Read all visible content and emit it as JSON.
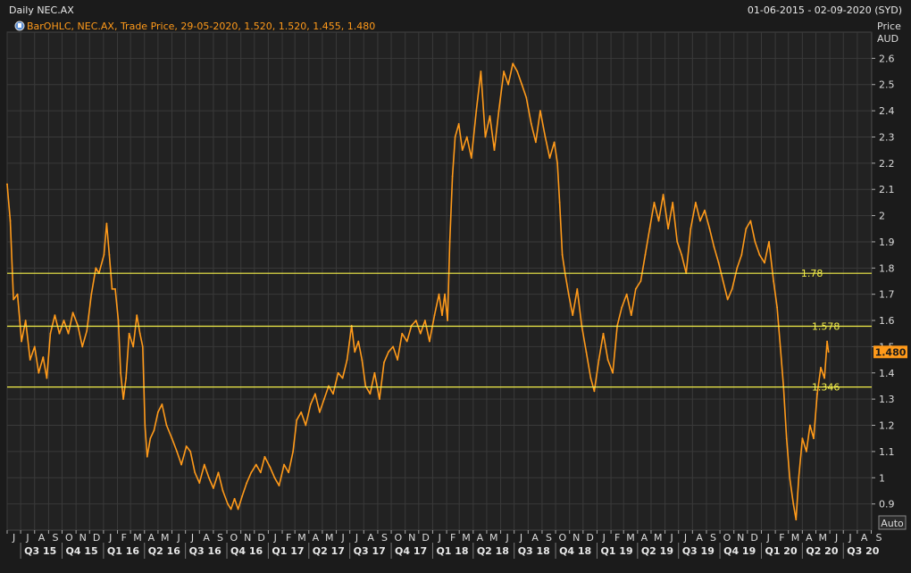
{
  "header": {
    "title": "Daily NEC.AX",
    "date_range": "01-06-2015 - 02-09-2020 (SYD)"
  },
  "legend": {
    "text": "BarOHLC, NEC.AX, Trade Price, 29-05-2020, 1.520, 1.520, 1.455, 1.480",
    "color": "#ff9a1a"
  },
  "axis": {
    "y_title_line1": "Price",
    "y_title_line2": "AUD",
    "auto_label": "Auto"
  },
  "colors": {
    "background": "#1b1b1b",
    "plot": "#222222",
    "grid": "#3a3a3a",
    "series": "#ff9a1a",
    "level_line": "#f5f04a",
    "last_price_bg": "#ff9a1a"
  },
  "chart_data": {
    "type": "line",
    "ylim": [
      0.8,
      2.7
    ],
    "xlim": [
      "2015-06-01",
      "2020-09-02"
    ],
    "y_ticks": [
      "0.9",
      "1",
      "1.1",
      "1.2",
      "1.3",
      "1.4",
      "1.5",
      "1.6",
      "1.7",
      "1.8",
      "1.9",
      "2",
      "2.1",
      "2.2",
      "2.3",
      "2.4",
      "2.5",
      "2.6"
    ],
    "y_tick_values": [
      0.9,
      1.0,
      1.1,
      1.2,
      1.3,
      1.4,
      1.5,
      1.6,
      1.7,
      1.8,
      1.9,
      2.0,
      2.1,
      2.2,
      2.3,
      2.4,
      2.5,
      2.6
    ],
    "month_labels": [
      "J",
      "J",
      "A",
      "S",
      "O",
      "N",
      "D",
      "J",
      "F",
      "M",
      "A",
      "M",
      "J",
      "J",
      "A",
      "S",
      "O",
      "N",
      "D",
      "J",
      "F",
      "M",
      "A",
      "M",
      "J",
      "J",
      "A",
      "S",
      "O",
      "N",
      "D",
      "J",
      "F",
      "M",
      "A",
      "M",
      "J",
      "J",
      "A",
      "S",
      "O",
      "N",
      "D",
      "J",
      "F",
      "M",
      "A",
      "M",
      "J",
      "J",
      "A",
      "S",
      "O",
      "N",
      "D",
      "J",
      "F",
      "M",
      "A",
      "M",
      "J",
      "J",
      "A",
      "S"
    ],
    "month_dates": [
      "2015-06-01",
      "2015-07-01",
      "2015-08-01",
      "2015-09-01",
      "2015-10-01",
      "2015-11-01",
      "2015-12-01",
      "2016-01-01",
      "2016-02-01",
      "2016-03-01",
      "2016-04-01",
      "2016-05-01",
      "2016-06-01",
      "2016-07-01",
      "2016-08-01",
      "2016-09-01",
      "2016-10-01",
      "2016-11-01",
      "2016-12-01",
      "2017-01-01",
      "2017-02-01",
      "2017-03-01",
      "2017-04-01",
      "2017-05-01",
      "2017-06-01",
      "2017-07-01",
      "2017-08-01",
      "2017-09-01",
      "2017-10-01",
      "2017-11-01",
      "2017-12-01",
      "2018-01-01",
      "2018-02-01",
      "2018-03-01",
      "2018-04-01",
      "2018-05-01",
      "2018-06-01",
      "2018-07-01",
      "2018-08-01",
      "2018-09-01",
      "2018-10-01",
      "2018-11-01",
      "2018-12-01",
      "2019-01-01",
      "2019-02-01",
      "2019-03-01",
      "2019-04-01",
      "2019-05-01",
      "2019-06-01",
      "2019-07-01",
      "2019-08-01",
      "2019-09-01",
      "2019-10-01",
      "2019-11-01",
      "2019-12-01",
      "2020-01-01",
      "2020-02-01",
      "2020-03-01",
      "2020-04-01",
      "2020-05-01",
      "2020-06-01",
      "2020-07-01",
      "2020-08-01",
      "2020-09-01"
    ],
    "quarter_labels": [
      "Q3 15",
      "Q4 15",
      "Q1 16",
      "Q2 16",
      "Q3 16",
      "Q4 16",
      "Q1 17",
      "Q2 17",
      "Q3 17",
      "Q4 17",
      "Q1 18",
      "Q2 18",
      "Q3 18",
      "Q4 18",
      "Q1 19",
      "Q2 19",
      "Q3 19",
      "Q4 19",
      "Q1 20",
      "Q2 20",
      "Q3 20"
    ],
    "quarter_dates": [
      "2015-07-01",
      "2015-10-01",
      "2016-01-01",
      "2016-04-01",
      "2016-07-01",
      "2016-10-01",
      "2017-01-01",
      "2017-04-01",
      "2017-07-01",
      "2017-10-01",
      "2018-01-01",
      "2018-04-01",
      "2018-07-01",
      "2018-10-01",
      "2019-01-01",
      "2019-04-01",
      "2019-07-01",
      "2019-10-01",
      "2020-01-01",
      "2020-04-01",
      "2020-07-01"
    ],
    "levels": [
      {
        "value": 1.78,
        "label": "1.78"
      },
      {
        "value": 1.578,
        "label": "1.578"
      },
      {
        "value": 1.346,
        "label": "1.346"
      }
    ],
    "last_price": {
      "value": 1.48,
      "label": "1.480"
    },
    "series": [
      {
        "points": [
          [
            "2015-06-01",
            2.12
          ],
          [
            "2015-06-08",
            1.98
          ],
          [
            "2015-06-15",
            1.68
          ],
          [
            "2015-06-24",
            1.7
          ],
          [
            "2015-07-03",
            1.52
          ],
          [
            "2015-07-12",
            1.6
          ],
          [
            "2015-07-22",
            1.45
          ],
          [
            "2015-08-01",
            1.5
          ],
          [
            "2015-08-10",
            1.4
          ],
          [
            "2015-08-20",
            1.46
          ],
          [
            "2015-08-28",
            1.38
          ],
          [
            "2015-09-05",
            1.55
          ],
          [
            "2015-09-15",
            1.62
          ],
          [
            "2015-09-25",
            1.55
          ],
          [
            "2015-10-05",
            1.6
          ],
          [
            "2015-10-15",
            1.55
          ],
          [
            "2015-10-25",
            1.63
          ],
          [
            "2015-11-05",
            1.58
          ],
          [
            "2015-11-15",
            1.5
          ],
          [
            "2015-11-25",
            1.56
          ],
          [
            "2015-12-05",
            1.7
          ],
          [
            "2015-12-15",
            1.8
          ],
          [
            "2015-12-22",
            1.78
          ],
          [
            "2016-01-02",
            1.85
          ],
          [
            "2016-01-08",
            1.97
          ],
          [
            "2016-01-14",
            1.85
          ],
          [
            "2016-01-20",
            1.72
          ],
          [
            "2016-01-27",
            1.72
          ],
          [
            "2016-02-03",
            1.6
          ],
          [
            "2016-02-08",
            1.4
          ],
          [
            "2016-02-14",
            1.3
          ],
          [
            "2016-02-20",
            1.38
          ],
          [
            "2016-02-27",
            1.55
          ],
          [
            "2016-03-07",
            1.5
          ],
          [
            "2016-03-15",
            1.62
          ],
          [
            "2016-03-22",
            1.55
          ],
          [
            "2016-03-28",
            1.5
          ],
          [
            "2016-04-02",
            1.2
          ],
          [
            "2016-04-07",
            1.08
          ],
          [
            "2016-04-14",
            1.15
          ],
          [
            "2016-04-22",
            1.18
          ],
          [
            "2016-05-01",
            1.25
          ],
          [
            "2016-05-10",
            1.28
          ],
          [
            "2016-05-20",
            1.2
          ],
          [
            "2016-06-01",
            1.15
          ],
          [
            "2016-06-12",
            1.1
          ],
          [
            "2016-06-22",
            1.05
          ],
          [
            "2016-07-03",
            1.12
          ],
          [
            "2016-07-12",
            1.1
          ],
          [
            "2016-07-22",
            1.02
          ],
          [
            "2016-08-01",
            0.98
          ],
          [
            "2016-08-12",
            1.05
          ],
          [
            "2016-08-22",
            1.0
          ],
          [
            "2016-09-01",
            0.96
          ],
          [
            "2016-09-12",
            1.02
          ],
          [
            "2016-09-22",
            0.95
          ],
          [
            "2016-10-03",
            0.9
          ],
          [
            "2016-10-10",
            0.88
          ],
          [
            "2016-10-18",
            0.92
          ],
          [
            "2016-10-26",
            0.88
          ],
          [
            "2016-11-04",
            0.93
          ],
          [
            "2016-11-14",
            0.98
          ],
          [
            "2016-11-24",
            1.02
          ],
          [
            "2016-12-05",
            1.05
          ],
          [
            "2016-12-15",
            1.02
          ],
          [
            "2016-12-24",
            1.08
          ],
          [
            "2017-01-05",
            1.04
          ],
          [
            "2017-01-15",
            1.0
          ],
          [
            "2017-01-25",
            0.97
          ],
          [
            "2017-02-05",
            1.05
          ],
          [
            "2017-02-15",
            1.02
          ],
          [
            "2017-02-25",
            1.1
          ],
          [
            "2017-03-05",
            1.22
          ],
          [
            "2017-03-15",
            1.25
          ],
          [
            "2017-03-25",
            1.2
          ],
          [
            "2017-04-05",
            1.28
          ],
          [
            "2017-04-15",
            1.32
          ],
          [
            "2017-04-25",
            1.25
          ],
          [
            "2017-05-05",
            1.3
          ],
          [
            "2017-05-15",
            1.35
          ],
          [
            "2017-05-25",
            1.32
          ],
          [
            "2017-06-05",
            1.4
          ],
          [
            "2017-06-15",
            1.38
          ],
          [
            "2017-06-25",
            1.45
          ],
          [
            "2017-07-05",
            1.58
          ],
          [
            "2017-07-12",
            1.48
          ],
          [
            "2017-07-20",
            1.52
          ],
          [
            "2017-07-28",
            1.45
          ],
          [
            "2017-08-05",
            1.35
          ],
          [
            "2017-08-15",
            1.32
          ],
          [
            "2017-08-25",
            1.4
          ],
          [
            "2017-09-05",
            1.3
          ],
          [
            "2017-09-15",
            1.44
          ],
          [
            "2017-09-25",
            1.48
          ],
          [
            "2017-10-05",
            1.5
          ],
          [
            "2017-10-15",
            1.45
          ],
          [
            "2017-10-25",
            1.55
          ],
          [
            "2017-11-05",
            1.52
          ],
          [
            "2017-11-15",
            1.58
          ],
          [
            "2017-11-25",
            1.6
          ],
          [
            "2017-12-05",
            1.55
          ],
          [
            "2017-12-15",
            1.6
          ],
          [
            "2017-12-25",
            1.52
          ],
          [
            "2018-01-05",
            1.62
          ],
          [
            "2018-01-15",
            1.7
          ],
          [
            "2018-01-22",
            1.62
          ],
          [
            "2018-01-28",
            1.7
          ],
          [
            "2018-02-03",
            1.6
          ],
          [
            "2018-02-08",
            1.9
          ],
          [
            "2018-02-14",
            2.15
          ],
          [
            "2018-02-20",
            2.3
          ],
          [
            "2018-02-28",
            2.35
          ],
          [
            "2018-03-08",
            2.25
          ],
          [
            "2018-03-18",
            2.3
          ],
          [
            "2018-03-28",
            2.22
          ],
          [
            "2018-04-08",
            2.4
          ],
          [
            "2018-04-18",
            2.55
          ],
          [
            "2018-04-28",
            2.3
          ],
          [
            "2018-05-08",
            2.38
          ],
          [
            "2018-05-18",
            2.25
          ],
          [
            "2018-05-28",
            2.4
          ],
          [
            "2018-06-08",
            2.55
          ],
          [
            "2018-06-18",
            2.5
          ],
          [
            "2018-06-28",
            2.58
          ],
          [
            "2018-07-08",
            2.55
          ],
          [
            "2018-07-18",
            2.5
          ],
          [
            "2018-07-28",
            2.45
          ],
          [
            "2018-08-08",
            2.35
          ],
          [
            "2018-08-18",
            2.28
          ],
          [
            "2018-08-28",
            2.4
          ],
          [
            "2018-09-08",
            2.3
          ],
          [
            "2018-09-18",
            2.22
          ],
          [
            "2018-09-28",
            2.28
          ],
          [
            "2018-10-05",
            2.2
          ],
          [
            "2018-10-10",
            2.05
          ],
          [
            "2018-10-16",
            1.85
          ],
          [
            "2018-10-22",
            1.78
          ],
          [
            "2018-10-30",
            1.7
          ],
          [
            "2018-11-08",
            1.62
          ],
          [
            "2018-11-18",
            1.72
          ],
          [
            "2018-11-28",
            1.58
          ],
          [
            "2018-12-08",
            1.48
          ],
          [
            "2018-12-18",
            1.38
          ],
          [
            "2018-12-26",
            1.33
          ],
          [
            "2019-01-05",
            1.45
          ],
          [
            "2019-01-15",
            1.55
          ],
          [
            "2019-01-25",
            1.45
          ],
          [
            "2019-02-05",
            1.4
          ],
          [
            "2019-02-15",
            1.58
          ],
          [
            "2019-02-25",
            1.65
          ],
          [
            "2019-03-08",
            1.7
          ],
          [
            "2019-03-18",
            1.62
          ],
          [
            "2019-03-28",
            1.72
          ],
          [
            "2019-04-08",
            1.75
          ],
          [
            "2019-04-18",
            1.85
          ],
          [
            "2019-04-28",
            1.95
          ],
          [
            "2019-05-08",
            2.05
          ],
          [
            "2019-05-18",
            1.98
          ],
          [
            "2019-05-28",
            2.08
          ],
          [
            "2019-06-08",
            1.95
          ],
          [
            "2019-06-18",
            2.05
          ],
          [
            "2019-06-28",
            1.9
          ],
          [
            "2019-07-08",
            1.85
          ],
          [
            "2019-07-18",
            1.78
          ],
          [
            "2019-07-28",
            1.95
          ],
          [
            "2019-08-08",
            2.05
          ],
          [
            "2019-08-18",
            1.98
          ],
          [
            "2019-08-28",
            2.02
          ],
          [
            "2019-09-08",
            1.95
          ],
          [
            "2019-09-18",
            1.88
          ],
          [
            "2019-09-28",
            1.82
          ],
          [
            "2019-10-08",
            1.75
          ],
          [
            "2019-10-18",
            1.68
          ],
          [
            "2019-10-28",
            1.72
          ],
          [
            "2019-11-08",
            1.8
          ],
          [
            "2019-11-18",
            1.85
          ],
          [
            "2019-11-28",
            1.95
          ],
          [
            "2019-12-08",
            1.98
          ],
          [
            "2019-12-18",
            1.9
          ],
          [
            "2019-12-28",
            1.85
          ],
          [
            "2020-01-08",
            1.82
          ],
          [
            "2020-01-18",
            1.9
          ],
          [
            "2020-01-28",
            1.75
          ],
          [
            "2020-02-05",
            1.65
          ],
          [
            "2020-02-12",
            1.5
          ],
          [
            "2020-02-19",
            1.35
          ],
          [
            "2020-02-26",
            1.15
          ],
          [
            "2020-03-04",
            1.0
          ],
          [
            "2020-03-12",
            0.9
          ],
          [
            "2020-03-18",
            0.84
          ],
          [
            "2020-03-24",
            1.0
          ],
          [
            "2020-04-01",
            1.15
          ],
          [
            "2020-04-10",
            1.1
          ],
          [
            "2020-04-18",
            1.2
          ],
          [
            "2020-04-26",
            1.15
          ],
          [
            "2020-05-04",
            1.32
          ],
          [
            "2020-05-12",
            1.42
          ],
          [
            "2020-05-20",
            1.38
          ],
          [
            "2020-05-26",
            1.52
          ],
          [
            "2020-05-29",
            1.48
          ]
        ]
      }
    ]
  }
}
